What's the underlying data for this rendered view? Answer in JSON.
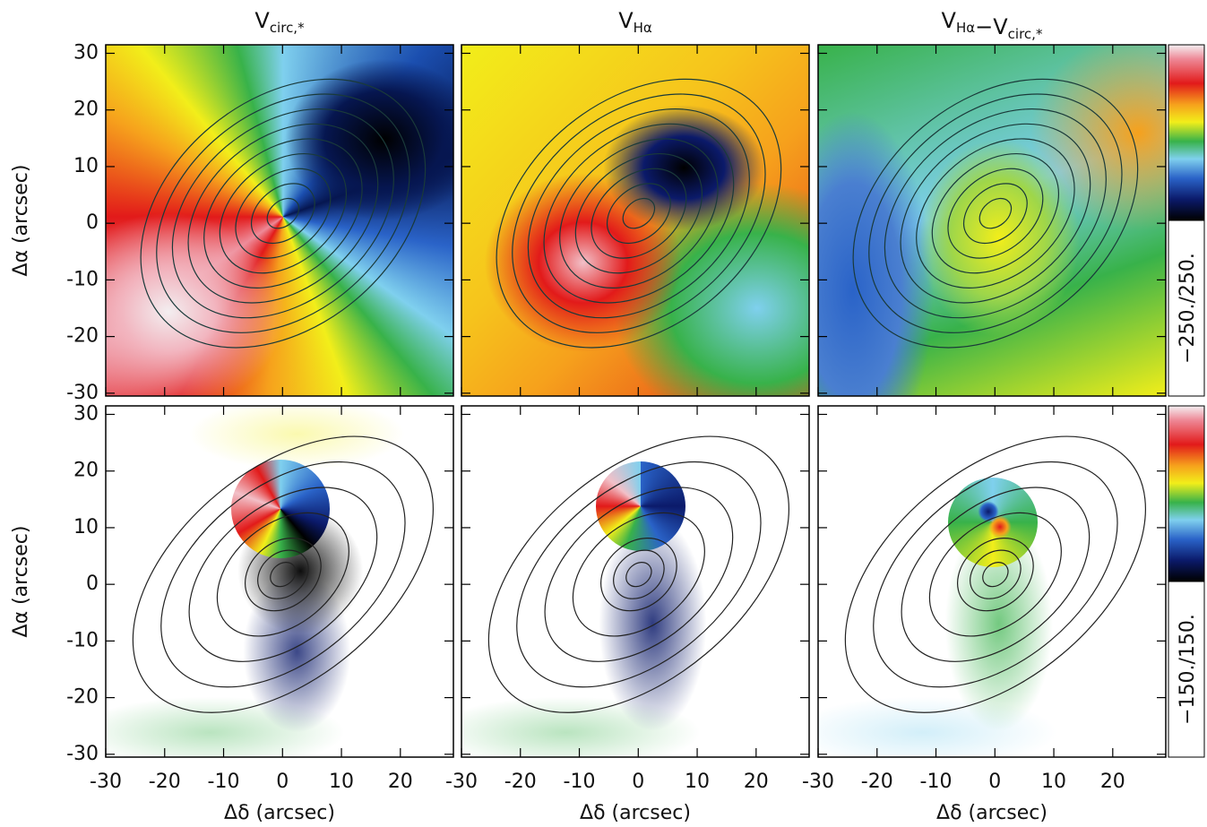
{
  "panel_titles": [
    [
      {
        "main": "V",
        "sub": "circ,*"
      }
    ],
    [
      {
        "main": "V",
        "sub": "Hα"
      }
    ],
    [
      {
        "main": "V",
        "sub": "Hα"
      },
      {
        "main": "−V",
        "sub": "circ,*"
      }
    ]
  ],
  "x_axis": {
    "label": "Δδ (arcsec)",
    "xlim": [
      -30,
      29
    ],
    "xticks": [
      -30,
      -20,
      -10,
      0,
      10,
      20
    ]
  },
  "y_axis": {
    "label": "Δα (arcsec)",
    "ylim": [
      -30.5,
      31.5
    ],
    "yticks": [
      -30,
      -20,
      -10,
      0,
      10,
      20,
      30
    ]
  },
  "colorbar_labels": [
    "−250./250.",
    "−150./150."
  ]
}
